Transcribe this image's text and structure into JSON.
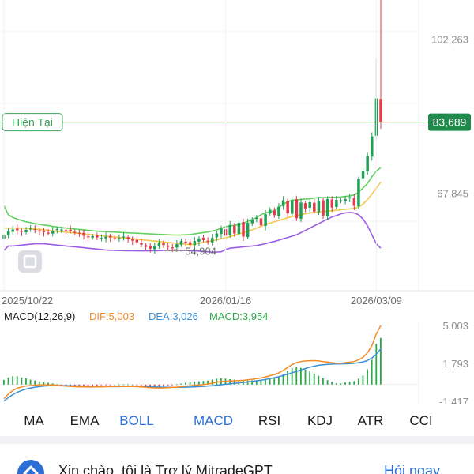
{
  "chart_data": [
    {
      "type": "candlestick",
      "current_label": "Hiện Tại",
      "current_value": 83689,
      "current_value_text": "83,689",
      "y_ticks": [
        {
          "value": 102263,
          "text": "102,263"
        },
        {
          "value": 67845,
          "text": "67,845"
        }
      ],
      "ylim": [
        46000,
        111000
      ],
      "x_ticks": [
        "2025/10/22",
        "2026/01/16",
        "2026/03/09"
      ],
      "x_tick_index": [
        0,
        50,
        84
      ],
      "annotations": [
        {
          "text": "54,904",
          "value": 54904,
          "index": 38
        }
      ],
      "colors": {
        "up": "#1fa055",
        "down": "#e23b4a",
        "upper": "#5fd15f",
        "middle": "#f2c94c",
        "lower": "#9b5de5",
        "current": "#3aa55a"
      },
      "series": [
        {
          "name": "close",
          "values": [
            58500,
            59300,
            59700,
            59500,
            59200,
            59600,
            59900,
            59600,
            59300,
            59100,
            58900,
            59400,
            59800,
            59700,
            59500,
            59300,
            59100,
            58800,
            58300,
            58000,
            58200,
            57900,
            57800,
            58100,
            57900,
            57700,
            57800,
            58100,
            57600,
            57200,
            56800,
            56300,
            55800,
            55400,
            56000,
            56600,
            56200,
            55800,
            55500,
            56400,
            57100,
            56700,
            56300,
            57100,
            57700,
            57300,
            56900,
            57800,
            58800,
            59900,
            58300,
            60700,
            58800,
            61200,
            58100,
            61200,
            61900,
            62300,
            60600,
            63100,
            64100,
            62900,
            64800,
            66200,
            63300,
            66300,
            62200,
            65700,
            64400,
            65800,
            63700,
            66100,
            62800,
            66500,
            64600,
            66300,
            66200,
            66500,
            66900,
            65000,
            71000,
            72800,
            76100,
            80500,
            89000,
            83689
          ]
        },
        {
          "name": "upper",
          "values": [
            65000,
            63000,
            62400,
            62000,
            61700,
            61400,
            61200,
            61000,
            60850,
            60700,
            60550,
            60400,
            60250,
            60100,
            60000,
            59900,
            59800,
            59700,
            59600,
            59500,
            59400,
            59300,
            59250,
            59200,
            59150,
            59100,
            59050,
            59000,
            58950,
            58900,
            58850,
            58800,
            58750,
            58700,
            58650,
            58600,
            58550,
            58500,
            58450,
            58450,
            58450,
            58500,
            58550,
            58700,
            58850,
            59000,
            59150,
            59350,
            59600,
            59950,
            60300,
            60500,
            60600,
            60800,
            61100,
            61500,
            61900,
            62400,
            63000,
            63400,
            63600,
            63900,
            64600,
            65300,
            65900,
            66200,
            66300,
            66400,
            66500,
            66600,
            66700,
            66800,
            66800,
            66850,
            66900,
            66900,
            66950,
            67100,
            67200,
            67400,
            68000,
            69000,
            70000,
            71500,
            72800,
            73500
          ]
        },
        {
          "name": "middle",
          "values": [
            60000,
            60000,
            60000,
            60000,
            60000,
            59900,
            59850,
            59800,
            59700,
            59600,
            59500,
            59400,
            59300,
            59200,
            59100,
            59000,
            58900,
            58800,
            58700,
            58600,
            58500,
            58400,
            58300,
            58200,
            58100,
            58000,
            57900,
            57800,
            57700,
            57600,
            57500,
            57400,
            57300,
            57200,
            57100,
            57000,
            56900,
            56800,
            56700,
            56600,
            56500,
            56400,
            56300,
            56400,
            56600,
            56800,
            57000,
            57200,
            57400,
            57600,
            57800,
            58100,
            58400,
            58700,
            59000,
            59300,
            59600,
            60000,
            60400,
            60800,
            61100,
            61400,
            61700,
            62000,
            62300,
            62600,
            62800,
            63000,
            63200,
            63400,
            63500,
            63600,
            63700,
            63800,
            63900,
            64000,
            64100,
            64200,
            64300,
            64400,
            64700,
            65400,
            66400,
            67600,
            68900,
            70300
          ]
        },
        {
          "name": "lower",
          "values": [
            55000,
            56000,
            56000,
            56100,
            56200,
            56300,
            56400,
            56500,
            56500,
            56500,
            56400,
            56300,
            56200,
            56100,
            56000,
            55900,
            55800,
            55700,
            55600,
            55500,
            55400,
            55300,
            55200,
            55100,
            55050,
            55000,
            54980,
            54960,
            54940,
            54920,
            54910,
            54904,
            54910,
            54920,
            54940,
            54960,
            55000,
            55050,
            55100,
            55100,
            55050,
            55000,
            54950,
            54900,
            54850,
            54800,
            54700,
            54600,
            54650,
            54700,
            55200,
            55500,
            55600,
            55700,
            55800,
            55900,
            56000,
            56100,
            56300,
            56500,
            56800,
            57000,
            57300,
            57600,
            57900,
            58200,
            58500,
            59000,
            59500,
            60000,
            60500,
            61000,
            61500,
            62000,
            62500,
            62800,
            63200,
            63400,
            63500,
            63400,
            63000,
            62000,
            60500,
            58500,
            56500,
            55500
          ]
        }
      ]
    },
    {
      "type": "macd",
      "title": "MACD(12,26,9)",
      "legend": [
        {
          "text": "DIF:5,003",
          "color": "#f28c28"
        },
        {
          "text": "DEA:3,026",
          "color": "#3a8fd6"
        },
        {
          "text": "MACD:3,954",
          "color": "#2aa84a"
        }
      ],
      "y_ticks": [
        {
          "value": 5003,
          "text": "5,003"
        },
        {
          "value": 1793,
          "text": "1,793"
        },
        {
          "value": -1417,
          "text": "-1,417"
        }
      ],
      "ylim": [
        -1417,
        5003
      ],
      "series": [
        {
          "name": "DIF",
          "values": [
            -1200,
            -800,
            -500,
            -300,
            -200,
            -120,
            -80,
            -50,
            -30,
            -20,
            -20,
            -30,
            -60,
            -100,
            -130,
            -160,
            -180,
            -190,
            -200,
            -205,
            -205,
            -200,
            -190,
            -180,
            -175,
            -170,
            -165,
            -160,
            -160,
            -165,
            -180,
            -200,
            -230,
            -260,
            -280,
            -290,
            -280,
            -260,
            -240,
            -220,
            -180,
            -140,
            -100,
            -60,
            -30,
            0,
            50,
            120,
            200,
            260,
            280,
            300,
            320,
            340,
            360,
            400,
            450,
            500,
            560,
            650,
            750,
            850,
            1000,
            1200,
            1450,
            1700,
            1850,
            1950,
            2000,
            2020,
            2030,
            2000,
            1950,
            1900,
            1850,
            1800,
            1800,
            1850,
            1900,
            1950,
            2100,
            2300,
            2700,
            3300,
            4300,
            5003
          ]
        },
        {
          "name": "DEA",
          "values": [
            -1400,
            -1100,
            -850,
            -650,
            -500,
            -380,
            -290,
            -220,
            -170,
            -130,
            -100,
            -80,
            -75,
            -80,
            -90,
            -100,
            -110,
            -120,
            -130,
            -140,
            -150,
            -160,
            -165,
            -168,
            -170,
            -170,
            -170,
            -168,
            -166,
            -165,
            -166,
            -170,
            -180,
            -190,
            -200,
            -210,
            -220,
            -225,
            -228,
            -230,
            -226,
            -218,
            -205,
            -190,
            -170,
            -150,
            -120,
            -90,
            -50,
            -10,
            30,
            70,
            110,
            150,
            190,
            230,
            270,
            320,
            370,
            430,
            500,
            580,
            670,
            770,
            880,
            1000,
            1120,
            1240,
            1360,
            1470,
            1560,
            1630,
            1680,
            1710,
            1730,
            1740,
            1750,
            1760,
            1780,
            1800,
            1850,
            1920,
            2050,
            2250,
            2580,
            3026
          ]
        },
        {
          "name": "MACD",
          "values": [
            400,
            600,
            700,
            700,
            600,
            520,
            420,
            340,
            280,
            220,
            160,
            100,
            30,
            -40,
            -80,
            -120,
            -140,
            -140,
            -140,
            -130,
            -110,
            -80,
            -50,
            -24,
            -10,
            0,
            10,
            16,
            12,
            0,
            -28,
            -60,
            -100,
            -140,
            -160,
            -160,
            -120,
            -70,
            -24,
            20,
            92,
            156,
            210,
            260,
            280,
            300,
            340,
            420,
            500,
            540,
            500,
            460,
            420,
            380,
            340,
            340,
            360,
            360,
            380,
            440,
            500,
            540,
            660,
            860,
            1140,
            1400,
            1460,
            1420,
            1280,
            1100,
            940,
            740,
            540,
            380,
            240,
            120,
            100,
            180,
            240,
            300,
            500,
            760,
            1300,
            2100,
            3440,
            3954
          ]
        }
      ]
    }
  ],
  "tabs": [
    "MA",
    "EMA",
    "BOLL",
    "MACD",
    "RSI",
    "KDJ",
    "ATR",
    "CCI"
  ],
  "active_tabs": [
    "BOLL",
    "MACD"
  ],
  "bottom_card": {
    "text": "Xin chào, tôi là Trợ lý MitradeGPT",
    "link": "Hỏi ngay"
  }
}
